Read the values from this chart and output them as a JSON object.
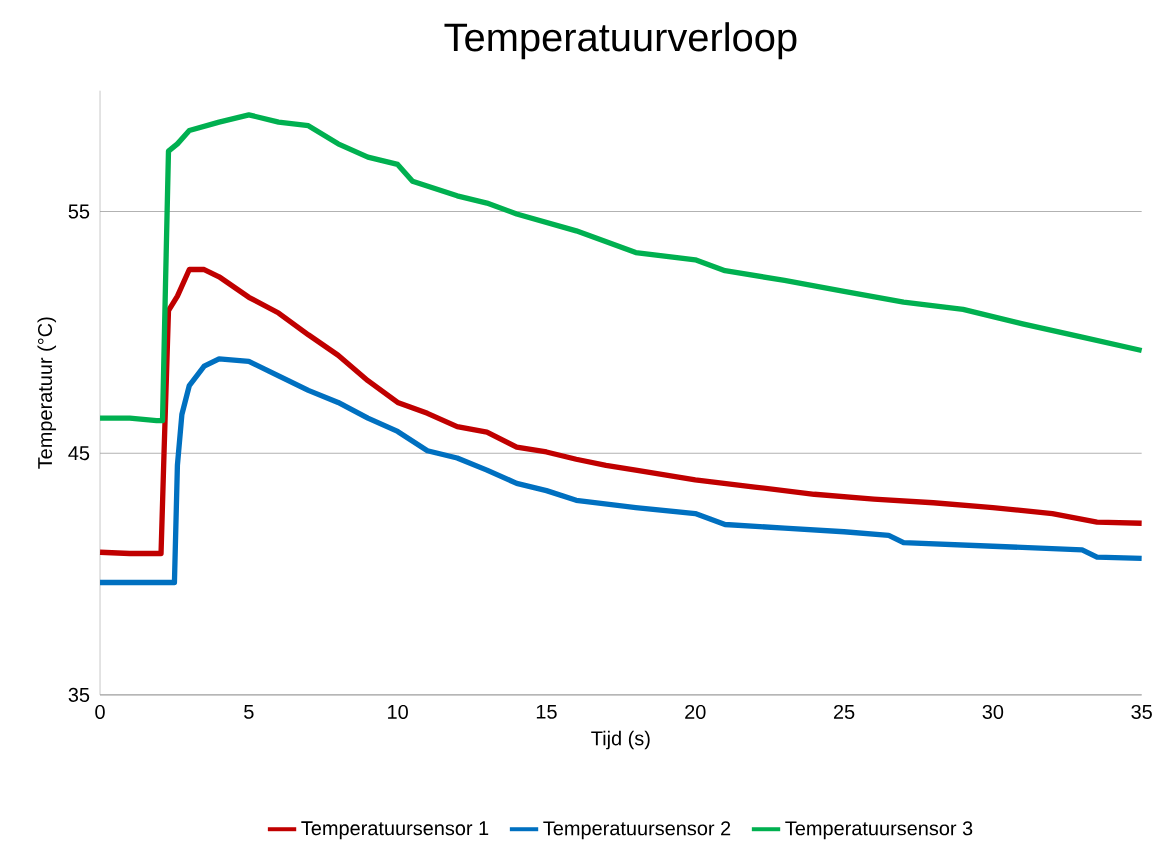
{
  "chart_data": {
    "type": "line",
    "title": "Temperatuurverloop",
    "xlabel": "Tijd (s)",
    "ylabel": "Temperatuur (°C)",
    "xlim": [
      0,
      35
    ],
    "ylim": [
      35,
      60
    ],
    "xticks": [
      0,
      5,
      10,
      15,
      20,
      25,
      30,
      35
    ],
    "yticks": [
      35,
      45,
      55
    ],
    "grid": "y",
    "legend": "bottom",
    "series": [
      {
        "name": "Temperatuursensor 1",
        "color": "#c00000",
        "x": [
          0,
          1,
          2.05,
          2.15,
          2.3,
          2.6,
          3,
          3.5,
          4,
          5,
          6,
          7,
          8,
          9,
          10,
          11,
          12,
          13,
          14,
          15,
          16,
          17,
          18,
          20,
          22,
          24,
          26,
          28,
          30,
          32,
          33.5,
          35
        ],
        "values": [
          40.9,
          40.85,
          40.85,
          45,
          50.9,
          51.5,
          52.6,
          52.6,
          52.3,
          51.45,
          50.8,
          49.9,
          49.05,
          48.0,
          47.1,
          46.65,
          46.1,
          45.87,
          45.25,
          45.05,
          44.75,
          44.5,
          44.3,
          43.9,
          43.6,
          43.3,
          43.1,
          42.95,
          42.75,
          42.5,
          42.15,
          42.1
        ]
      },
      {
        "name": "Temperatuursensor  2",
        "color": "#0070c0",
        "x": [
          0,
          1,
          2.5,
          2.6,
          2.75,
          3,
          3.5,
          4,
          5,
          6,
          7,
          8,
          9,
          10,
          11,
          12,
          13,
          14,
          15,
          16,
          18,
          20,
          21,
          23,
          25,
          26.5,
          27,
          30,
          33,
          33.5,
          35
        ],
        "values": [
          39.65,
          39.65,
          39.65,
          44.5,
          46.6,
          47.8,
          48.6,
          48.9,
          48.8,
          48.2,
          47.6,
          47.1,
          46.45,
          45.9,
          45.1,
          44.8,
          44.3,
          43.75,
          43.45,
          43.05,
          42.75,
          42.5,
          42.05,
          41.9,
          41.75,
          41.6,
          41.3,
          41.15,
          41.0,
          40.7,
          40.65
        ]
      },
      {
        "name": "Temperatuursensor 3",
        "color": "#00b050",
        "x": [
          0,
          1,
          1.9,
          2.1,
          2.2,
          2.3,
          2.6,
          3,
          4,
          5,
          6,
          7,
          8,
          9,
          10,
          10.5,
          12,
          13,
          14,
          16,
          18,
          20,
          21,
          23,
          25,
          27,
          29,
          31,
          33,
          35
        ],
        "values": [
          46.45,
          46.45,
          46.35,
          46.35,
          52,
          57.5,
          57.8,
          58.35,
          58.7,
          59.0,
          58.7,
          58.55,
          57.8,
          57.25,
          56.95,
          56.25,
          55.65,
          55.35,
          54.9,
          54.2,
          53.3,
          53.0,
          52.55,
          52.15,
          51.7,
          51.25,
          50.95,
          50.35,
          49.8,
          49.25
        ]
      }
    ]
  }
}
